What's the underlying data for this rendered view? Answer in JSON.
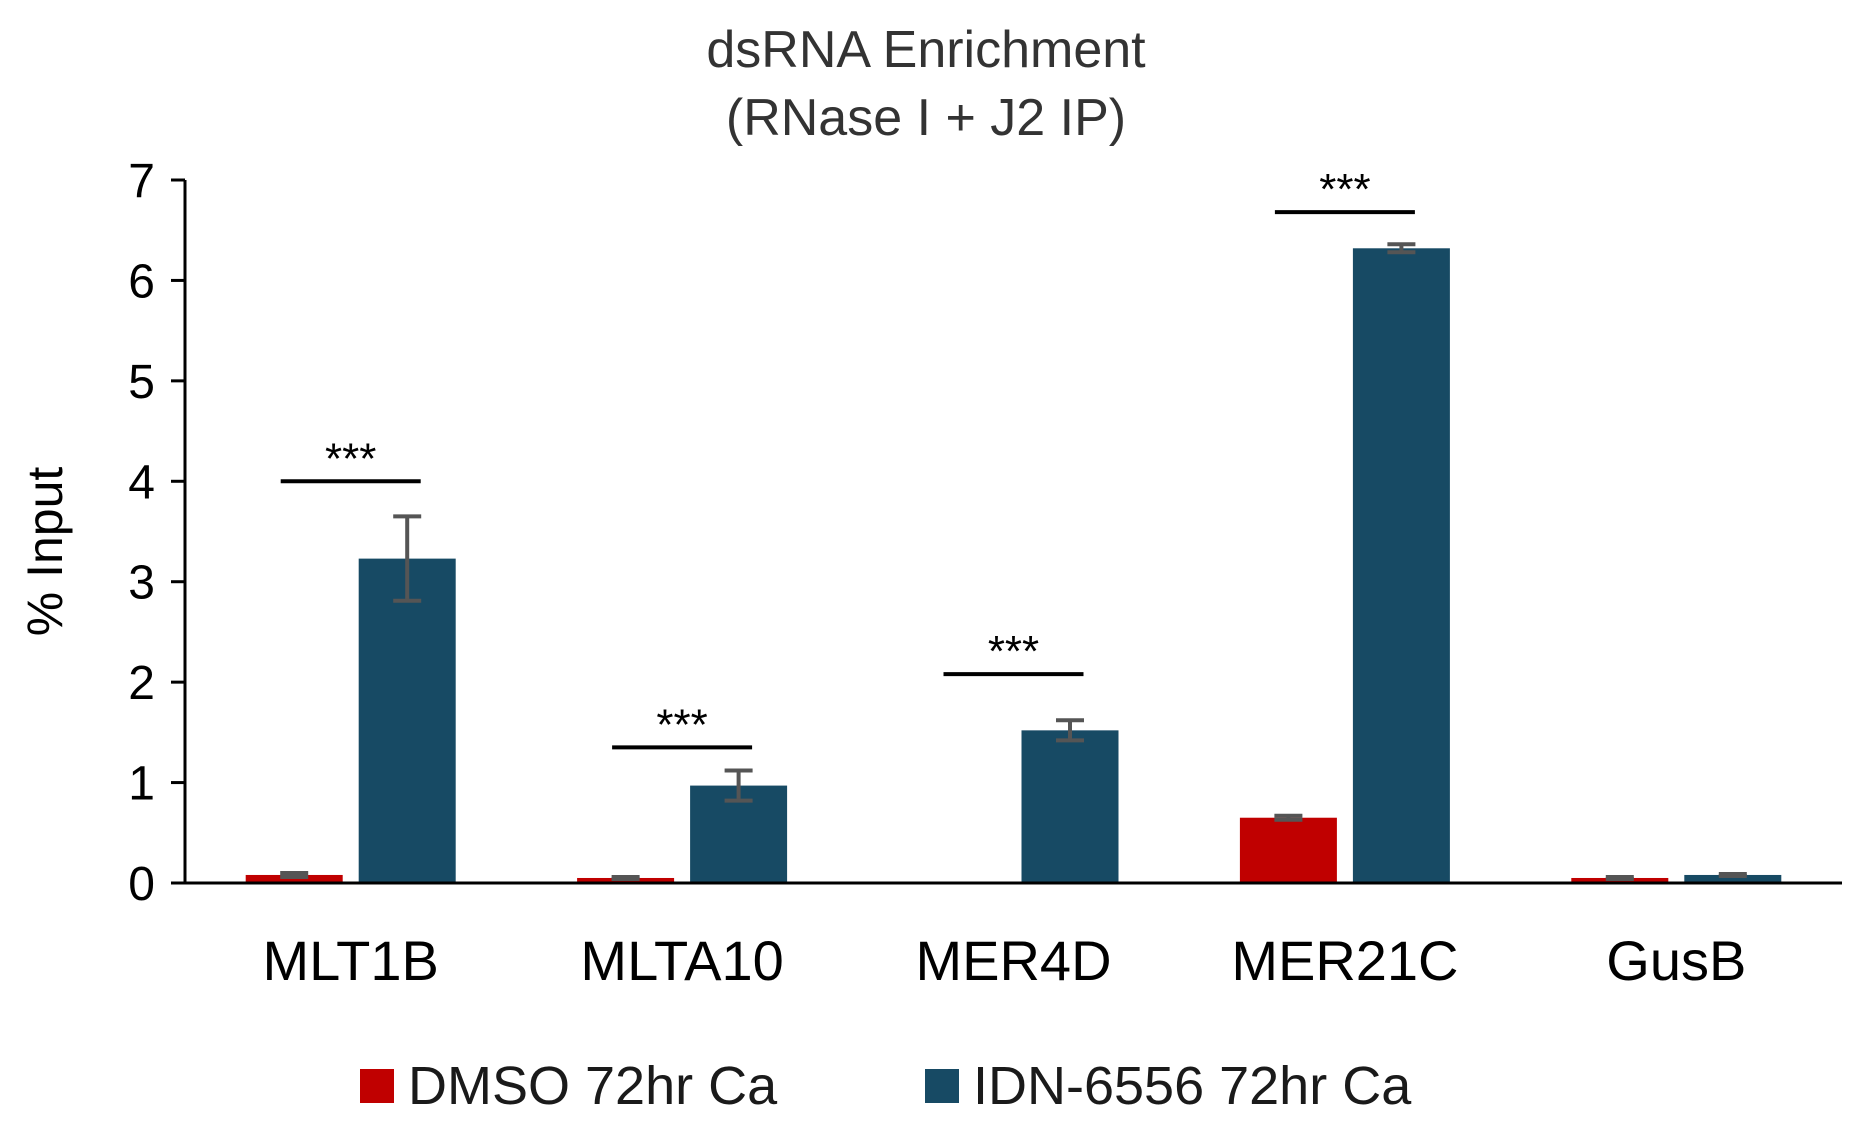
{
  "chart_data": {
    "type": "bar",
    "title": [
      "dsRNA Enrichment",
      "(RNase I + J2 IP)"
    ],
    "ylabel": "% Input",
    "xlabel": "",
    "ylim": [
      0,
      7
    ],
    "yticks": [
      0,
      1,
      2,
      3,
      4,
      5,
      6,
      7
    ],
    "categories": [
      "MLT1B",
      "MLTA10",
      "MER4D",
      "MER21C",
      "GusB"
    ],
    "series": [
      {
        "name": "DMSO 72hr Ca",
        "color": "#c00000",
        "values": [
          0.08,
          0.05,
          0.0,
          0.65,
          0.05
        ],
        "errors": [
          0.02,
          0.01,
          0.0,
          0.02,
          0.01
        ]
      },
      {
        "name": "IDN-6556 72hr Ca",
        "color": "#174a64",
        "values": [
          3.23,
          0.97,
          1.52,
          6.32,
          0.08
        ],
        "errors": [
          0.42,
          0.15,
          0.1,
          0.04,
          0.01
        ]
      }
    ],
    "annotations": [
      {
        "category": "MLT1B",
        "text": "***",
        "y": 4.0
      },
      {
        "category": "MLTA10",
        "text": "***",
        "y": 1.35
      },
      {
        "category": "MER4D",
        "text": "***",
        "y": 2.08
      },
      {
        "category": "MER21C",
        "text": "***",
        "y": 6.68
      }
    ],
    "grid": false,
    "legend_position": "bottom"
  }
}
